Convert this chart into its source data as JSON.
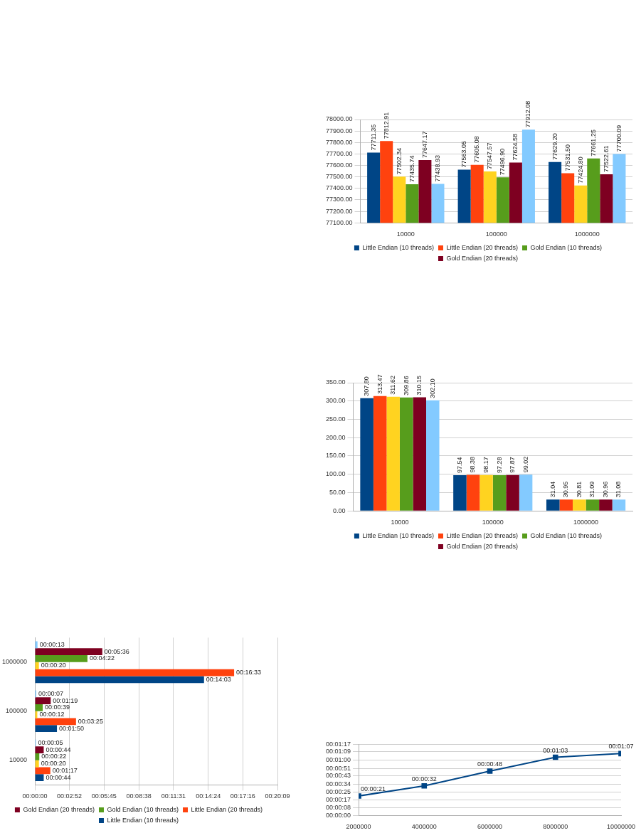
{
  "chart_data": [
    {
      "type": "bar",
      "categories": [
        "10000",
        "100000",
        "1000000"
      ],
      "ylim": [
        77100,
        78000
      ],
      "yticks": [
        {
          "value": 77100,
          "label": "77100.00"
        },
        {
          "value": 77200,
          "label": "77200.00"
        },
        {
          "value": 77300,
          "label": "77300.00"
        },
        {
          "value": 77400,
          "label": "77400.00"
        },
        {
          "value": 77500,
          "label": "77500.00"
        },
        {
          "value": 77600,
          "label": "77600.00"
        },
        {
          "value": 77700,
          "label": "77700.00"
        },
        {
          "value": 77800,
          "label": "77800.00"
        },
        {
          "value": 77900,
          "label": "77900.00"
        },
        {
          "value": 78000,
          "label": "78000.00"
        }
      ],
      "grid": "y",
      "legend": "bottom",
      "series": [
        {
          "name": "Little Endian (10 threads)",
          "color": "#004586",
          "values": [
            77711.35,
            77563.05,
            77629.2
          ],
          "value_labels": [
            "77711.35",
            "77563.05",
            "77629.20"
          ]
        },
        {
          "name": "Little Endian (20 threads)",
          "color": "#ff420e",
          "values": [
            77812.91,
            77605.08,
            77531.5
          ],
          "value_labels": [
            "77812.91",
            "77605.08",
            "77531.50"
          ]
        },
        {
          "color": "#ffd320",
          "values": [
            77502.34,
            77547.57,
            77424.8
          ],
          "value_labels": [
            "77502.34",
            "77547.57",
            "77424.80"
          ]
        },
        {
          "name": "Gold Endian (10 threads)",
          "color": "#579d1c",
          "values": [
            77435.74,
            77496.9,
            77661.25
          ],
          "value_labels": [
            "77435.74",
            "77496.90",
            "77661.25"
          ]
        },
        {
          "name": "Gold Endian (20 threads)",
          "color": "#7e0021",
          "values": [
            77647.17,
            77624.58,
            77522.61
          ],
          "value_labels": [
            "77647.17",
            "77624.58",
            "77522.61"
          ]
        },
        {
          "color": "#83caff",
          "values": [
            77438.93,
            77912.08,
            77700.09
          ],
          "value_labels": [
            "77438.93",
            "77912.08",
            "77700.09"
          ]
        }
      ]
    },
    {
      "type": "bar",
      "categories": [
        "10000",
        "100000",
        "1000000"
      ],
      "ylim": [
        0,
        350
      ],
      "yticks": [
        {
          "value": 0,
          "label": "0.00"
        },
        {
          "value": 50,
          "label": "50.00"
        },
        {
          "value": 100,
          "label": "100.00"
        },
        {
          "value": 150,
          "label": "150.00"
        },
        {
          "value": 200,
          "label": "200.00"
        },
        {
          "value": 250,
          "label": "250.00"
        },
        {
          "value": 300,
          "label": "300.00"
        },
        {
          "value": 350,
          "label": "350.00"
        }
      ],
      "grid": "y",
      "legend": "bottom",
      "series": [
        {
          "name": "Little Endian (10 threads)",
          "color": "#004586",
          "values": [
            307.8,
            97.54,
            31.04
          ],
          "value_labels": [
            "307.80",
            "97.54",
            "31.04"
          ]
        },
        {
          "name": "Little Endian (20 threads)",
          "color": "#ff420e",
          "values": [
            313.47,
            98.38,
            30.95
          ],
          "value_labels": [
            "313.47",
            "98.38",
            "30.95"
          ]
        },
        {
          "color": "#ffd320",
          "values": [
            311.62,
            98.17,
            30.81
          ],
          "value_labels": [
            "311.62",
            "98.17",
            "30.81"
          ]
        },
        {
          "name": "Gold Endian (10 threads)",
          "color": "#579d1c",
          "values": [
            309.86,
            97.28,
            31.09
          ],
          "value_labels": [
            "309.86",
            "97.28",
            "31.09"
          ]
        },
        {
          "name": "Gold Endian (20 threads)",
          "color": "#7e0021",
          "values": [
            310.15,
            97.87,
            30.96
          ],
          "value_labels": [
            "310.15",
            "97.87",
            "30.96"
          ]
        },
        {
          "color": "#83caff",
          "values": [
            302.1,
            99.02,
            31.08
          ],
          "value_labels": [
            "302.10",
            "99.02",
            "31.08"
          ]
        }
      ]
    },
    {
      "type": "bar",
      "orientation": "horizontal",
      "categories": [
        "1000000",
        "100000",
        "10000"
      ],
      "xlim": [
        0,
        1209
      ],
      "xticks": [
        {
          "value": 0,
          "label": "00:00:00"
        },
        {
          "value": 172,
          "label": "00:02:52"
        },
        {
          "value": 345,
          "label": "00:05:45"
        },
        {
          "value": 518,
          "label": "00:08:38"
        },
        {
          "value": 691,
          "label": "00:11:31"
        },
        {
          "value": 864,
          "label": "00:14:24"
        },
        {
          "value": 1036,
          "label": "00:17:16"
        },
        {
          "value": 1209,
          "label": "00:20:09"
        }
      ],
      "grid": "x",
      "legend": "bottom",
      "series": [
        {
          "color": "#83caff",
          "values": [
            13,
            7,
            5
          ],
          "value_labels": [
            "00:00:13",
            "00:00:07",
            "00:00:05"
          ]
        },
        {
          "name": "Gold Endian (20 threads)",
          "color": "#7e0021",
          "values": [
            336,
            79,
            44
          ],
          "value_labels": [
            "00:05:36",
            "00:01:19",
            "00:00:44"
          ]
        },
        {
          "name": "Gold Endian (10 threads)",
          "color": "#579d1c",
          "values": [
            262,
            39,
            22
          ],
          "value_labels": [
            "00:04:22",
            "00:00:39",
            "00:00:22"
          ]
        },
        {
          "color": "#ffd320",
          "values": [
            20,
            12,
            20
          ],
          "value_labels": [
            "00:00:20",
            "00:00:12",
            "00:00:20"
          ]
        },
        {
          "name": "Little Endian (20 threads)",
          "color": "#ff420e",
          "values": [
            993,
            205,
            77
          ],
          "value_labels": [
            "00:16:33",
            "00:03:25",
            "00:01:17"
          ]
        },
        {
          "name": "Little Endian (10 threads)",
          "color": "#004586",
          "values": [
            843,
            110,
            44
          ],
          "value_labels": [
            "00:14:03",
            "00:01:50",
            "00:00:44"
          ]
        }
      ]
    },
    {
      "type": "line",
      "x": [
        2000000,
        4000000,
        6000000,
        8000000,
        10000000
      ],
      "xlim": [
        2000000,
        10000000
      ],
      "xticks": [
        2000000,
        4000000,
        6000000,
        8000000,
        10000000
      ],
      "ylim": [
        0,
        77
      ],
      "yticks": [
        {
          "value": 0,
          "label": "00:00:00"
        },
        {
          "value": 8,
          "label": "00:00:08"
        },
        {
          "value": 17,
          "label": "00:00:17"
        },
        {
          "value": 25,
          "label": "00:00:25"
        },
        {
          "value": 34,
          "label": "00:00:34"
        },
        {
          "value": 43,
          "label": "00:00:43"
        },
        {
          "value": 51,
          "label": "00:00:51"
        },
        {
          "value": 60,
          "label": "00:01:00"
        },
        {
          "value": 69,
          "label": "00:01:09"
        },
        {
          "value": 77,
          "label": "00:01:17"
        }
      ],
      "grid": "y",
      "marker": "square",
      "series": [
        {
          "color": "#004586",
          "values": [
            21,
            32,
            48,
            63,
            67
          ],
          "value_labels": [
            "00:00:21",
            "00:00:32",
            "00:00:48",
            "00:01:03",
            "00:01:07"
          ]
        }
      ]
    }
  ]
}
